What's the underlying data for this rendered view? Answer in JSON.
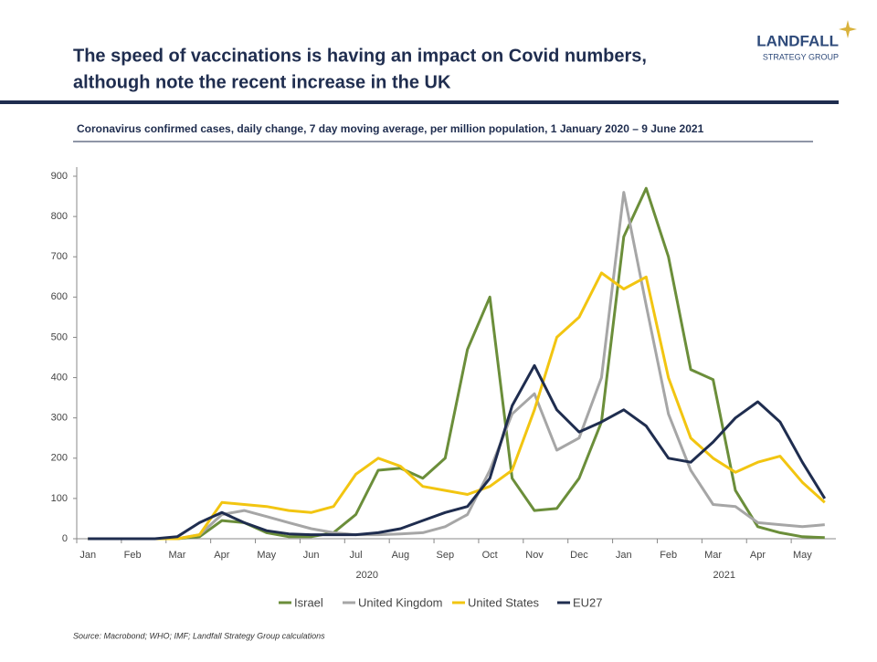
{
  "chart_data": {
    "type": "line",
    "title": [
      "The speed of vaccinations is having an impact on Covid numbers,",
      "although note the recent increase in the UK"
    ],
    "brand": [
      "LANDFALL",
      "STRATEGY GROUP"
    ],
    "subtitle": "Coronavirus confirmed cases, daily change, 7 day moving average, per million population, 1 January 2020 – 9 June 2021",
    "source": "Source: Macrobond;  WHO; IMF; Landfall Strategy Group calculations",
    "categories": [
      "Jan",
      null,
      "Feb",
      null,
      "Mar",
      null,
      "Apr",
      null,
      "May",
      null,
      "Jun",
      null,
      "Jul",
      null,
      "Aug",
      null,
      "Sep",
      null,
      "Oct",
      null,
      "Nov",
      null,
      "Dec",
      null,
      "Jan",
      null,
      "Feb",
      null,
      "Mar",
      null,
      "Apr",
      null,
      "May",
      null
    ],
    "year_labels": [
      "2020",
      "2021"
    ],
    "series": [
      {
        "name": "Israel",
        "color": "#6b8e3a",
        "values": [
          0,
          0,
          0,
          0,
          0,
          5,
          45,
          40,
          15,
          5,
          5,
          15,
          60,
          170,
          175,
          150,
          200,
          470,
          600,
          150,
          70,
          75,
          150,
          290,
          750,
          870,
          700,
          420,
          395,
          120,
          30,
          15,
          5,
          3
        ]
      },
      {
        "name": "United Kingdom",
        "color": "#a6a6a6",
        "values": [
          0,
          0,
          0,
          0,
          0,
          10,
          60,
          70,
          55,
          40,
          25,
          15,
          10,
          10,
          12,
          15,
          30,
          60,
          170,
          310,
          360,
          220,
          250,
          400,
          860,
          580,
          310,
          170,
          85,
          80,
          40,
          35,
          30,
          35
        ]
      },
      {
        "name": "United States",
        "color": "#f2c511",
        "values": [
          0,
          0,
          0,
          0,
          0,
          10,
          90,
          85,
          80,
          70,
          65,
          80,
          160,
          200,
          180,
          130,
          120,
          110,
          130,
          170,
          320,
          500,
          550,
          660,
          620,
          650,
          400,
          250,
          200,
          165,
          190,
          205,
          140,
          90
        ]
      },
      {
        "name": "EU27",
        "color": "#1f2d4f",
        "values": [
          0,
          0,
          0,
          0,
          5,
          40,
          65,
          40,
          20,
          12,
          10,
          10,
          10,
          15,
          25,
          45,
          65,
          80,
          150,
          330,
          430,
          320,
          265,
          290,
          320,
          280,
          200,
          190,
          240,
          300,
          340,
          290,
          190,
          100
        ]
      }
    ],
    "ylim": [
      0,
      900
    ],
    "yticks": [
      0,
      100,
      200,
      300,
      400,
      500,
      600,
      700,
      800,
      900
    ],
    "legend": "bottom"
  }
}
